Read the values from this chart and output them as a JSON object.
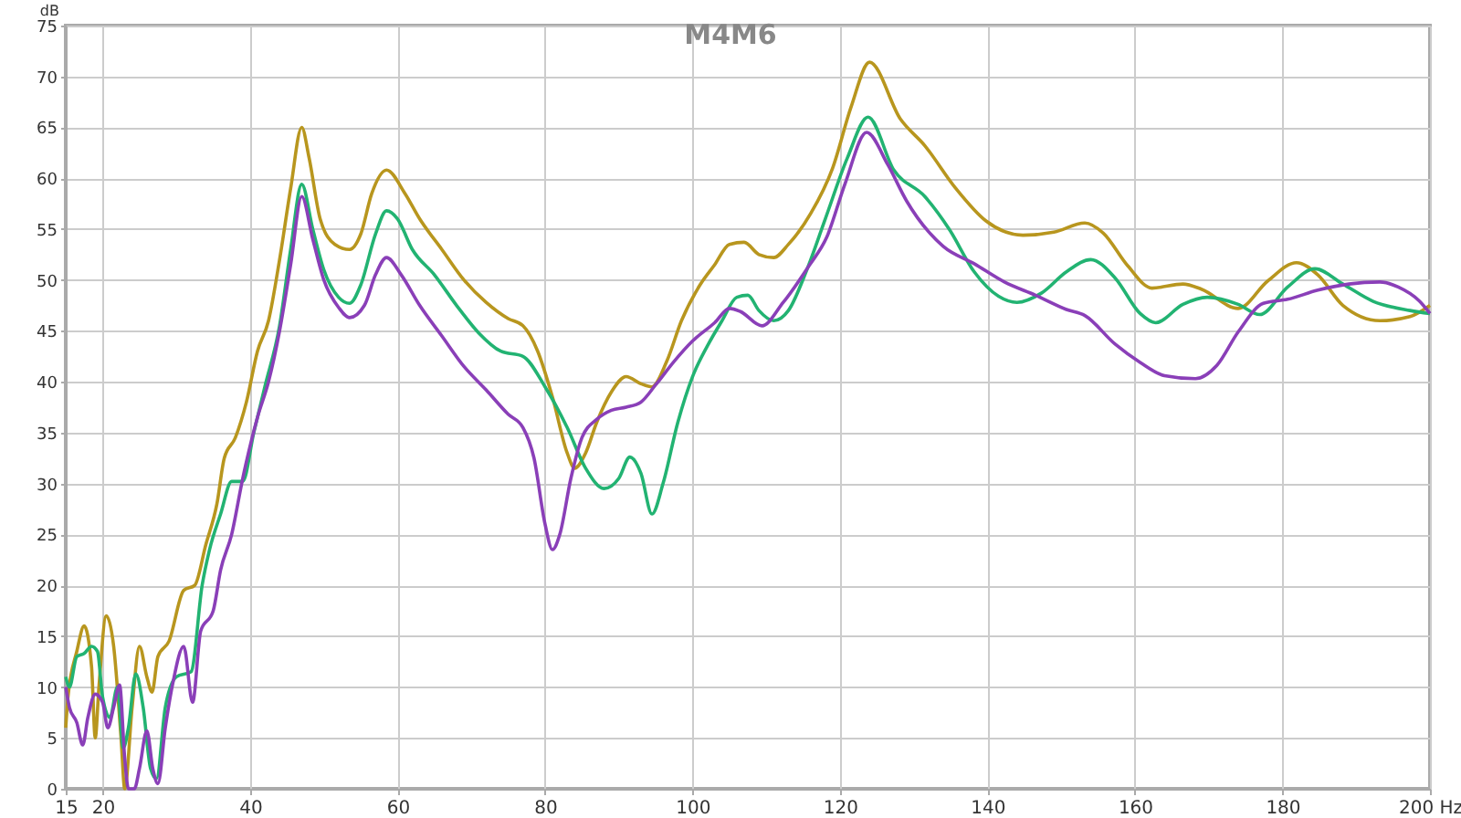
{
  "chart_data": {
    "type": "line",
    "title": "M4M6",
    "ylabel": "dB",
    "xlim": [
      15,
      200
    ],
    "xticks": [
      15,
      20,
      40,
      60,
      80,
      100,
      120,
      140,
      160,
      180,
      {
        "value": 200,
        "label": "200 Hz"
      }
    ],
    "ylim": [
      0,
      75
    ],
    "yticks": [
      0,
      5,
      10,
      15,
      20,
      25,
      30,
      35,
      40,
      45,
      50,
      55,
      60,
      65,
      70,
      75
    ],
    "grid": true,
    "marker": "none",
    "line_style": "solid",
    "series": [
      {
        "color": "#b8961e",
        "x": [
          15,
          15.3,
          16.5,
          17.5,
          18.5,
          19,
          19.5,
          20.5,
          21.5,
          22.5,
          23,
          24,
          25,
          26,
          26.7,
          27.5,
          29,
          31,
          32.5,
          34,
          35.5,
          36.5,
          38,
          39.5,
          41,
          42.5,
          44,
          45.5,
          47,
          48,
          49.5,
          51.5,
          53.5,
          55,
          56.5,
          58.5,
          61,
          63,
          66,
          69,
          72,
          75,
          77,
          79,
          81,
          83,
          84,
          85.5,
          87,
          89,
          91,
          93,
          94.5,
          96.5,
          98.5,
          101,
          103,
          105,
          107,
          109,
          111,
          113,
          116,
          119,
          121.5,
          124,
          128.2,
          131.5,
          135.7,
          139.8,
          144.8,
          149,
          153.2,
          155.7,
          159,
          162.3,
          166.5,
          169,
          174,
          178,
          181.9,
          184.8,
          188.2,
          193.2,
          197.3,
          200
        ],
        "values": [
          6,
          9,
          13.5,
          16,
          12,
          5,
          10,
          17,
          14,
          5,
          0,
          8,
          14,
          11,
          9.5,
          13,
          14.5,
          19.5,
          20,
          24,
          28,
          32.5,
          34.5,
          38,
          43,
          46,
          52,
          59,
          65,
          62,
          56,
          53.5,
          53,
          54.5,
          58.5,
          60.8,
          58.5,
          56,
          53,
          50,
          47.8,
          46.2,
          45.5,
          43,
          38.5,
          33,
          31.5,
          33,
          36,
          39,
          40.5,
          39.8,
          39.5,
          42,
          46,
          49.5,
          51.5,
          53.5,
          53.7,
          52.5,
          52.2,
          53.5,
          56.5,
          61,
          67,
          71.4,
          65.8,
          63.2,
          59,
          55.8,
          54.4,
          54.7,
          55.6,
          54.6,
          51.4,
          49.2,
          49.6,
          49.1,
          47.2,
          49.9,
          51.7,
          50.5,
          47.5,
          46,
          46.4,
          47.5
        ]
      },
      {
        "color": "#22b372",
        "x": [
          15,
          15.5,
          16.5,
          17.5,
          18.5,
          19.3,
          20,
          21,
          22,
          22.8,
          23.5,
          24.5,
          25.5,
          26.5,
          27.3,
          28.5,
          30,
          32,
          33.5,
          34.5,
          36,
          37.5,
          39,
          40.5,
          42,
          44,
          45.5,
          47,
          48.5,
          50,
          52,
          53.5,
          55,
          57,
          58.5,
          60,
          62,
          65,
          68,
          71,
          74,
          77,
          80,
          83,
          85.5,
          88,
          90,
          91.5,
          93,
          94.5,
          96,
          98,
          100,
          102,
          104,
          106,
          107.5,
          109,
          111,
          113,
          115.5,
          118,
          121,
          123.8,
          127.3,
          131.5,
          134.8,
          138.2,
          141.5,
          144,
          147.3,
          150.7,
          154,
          157.3,
          160.7,
          162.8,
          166.5,
          169.8,
          174,
          176.9,
          180.7,
          184.4,
          188.2,
          192.3,
          197.3,
          200
        ],
        "values": [
          11,
          10,
          13,
          13.3,
          14,
          13.5,
          9,
          7,
          10,
          4,
          6,
          11.3,
          8,
          2,
          1,
          8,
          11,
          11.5,
          20,
          23.5,
          27,
          30.2,
          30.2,
          35,
          39.5,
          45.5,
          53,
          59.4,
          55,
          51,
          48.3,
          47.7,
          49.5,
          54.5,
          56.8,
          56,
          53,
          50.5,
          47.5,
          44.8,
          43,
          42.5,
          39.5,
          35.5,
          31.5,
          29.5,
          30.5,
          32.6,
          31,
          27,
          30,
          36,
          40.5,
          43.5,
          46,
          48.3,
          48.5,
          47,
          46,
          47,
          51,
          56,
          62,
          66,
          60.8,
          58.2,
          55,
          50.8,
          48.4,
          47.8,
          48.7,
          50.8,
          52,
          50.2,
          46.7,
          45.8,
          47.6,
          48.3,
          47.6,
          46.6,
          49.3,
          51.1,
          49.6,
          47.9,
          47,
          46.7
        ]
      },
      {
        "color": "#8a3fb8",
        "x": [
          15,
          15.5,
          16.5,
          17.3,
          18,
          19,
          20,
          20.7,
          21.5,
          22.3,
          23,
          23.5,
          24.3,
          25,
          26,
          26.8,
          27.5,
          28.5,
          29.5,
          31,
          32.2,
          33.3,
          35,
          36,
          37.5,
          39,
          41,
          42.5,
          44,
          45.5,
          47,
          48.5,
          50,
          52,
          53.5,
          55.5,
          57,
          58.5,
          60.5,
          63,
          66,
          69,
          72,
          75,
          77,
          78.5,
          80,
          81,
          82,
          83.5,
          85,
          87,
          89,
          91,
          93,
          95,
          97.5,
          100,
          103,
          105,
          106.5,
          109.4,
          112.3,
          115.7,
          118.2,
          120.7,
          123.6,
          126.5,
          129,
          134,
          138.2,
          142.3,
          146.5,
          150.7,
          153.2,
          157.3,
          160.7,
          164,
          168.2,
          171.1,
          174,
          177.4,
          180.7,
          184.8,
          189,
          193.2,
          195.7,
          198.6,
          200
        ],
        "values": [
          10,
          8,
          6.5,
          4.3,
          7,
          9.3,
          8.5,
          6,
          8,
          10.2,
          3,
          0,
          0,
          2,
          5.7,
          2,
          0.5,
          6,
          10.3,
          14,
          8.5,
          15.5,
          17.5,
          21.5,
          25,
          30.5,
          36.5,
          40,
          45,
          51.5,
          58.2,
          54,
          50,
          47.3,
          46.3,
          47.5,
          50.5,
          52.2,
          50.5,
          47.5,
          44.5,
          41.5,
          39.2,
          36.8,
          35.5,
          32.5,
          26,
          23.5,
          25,
          30.5,
          34.5,
          36.3,
          37.2,
          37.5,
          38,
          39.7,
          42,
          44,
          45.8,
          47.2,
          46.9,
          45.5,
          47.8,
          51.3,
          54.2,
          59.5,
          64.5,
          61.3,
          57.8,
          53.3,
          51.6,
          49.8,
          48.5,
          47.1,
          46.5,
          43.7,
          41.9,
          40.6,
          40.3,
          41.6,
          44.9,
          47.7,
          48.1,
          49,
          49.6,
          49.8,
          49.3,
          47.9,
          46.7
        ]
      }
    ]
  }
}
